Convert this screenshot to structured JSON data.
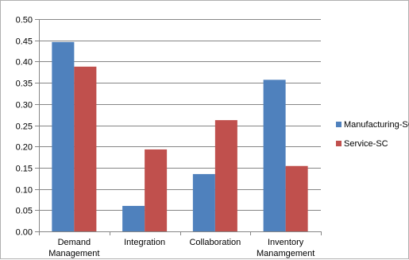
{
  "chart_data": {
    "type": "bar",
    "categories": [
      [
        "Demand",
        "Management"
      ],
      [
        "Integration"
      ],
      [
        "Collaboration"
      ],
      [
        "Inventory",
        "Manamgement"
      ]
    ],
    "series": [
      {
        "name": "Manufacturing-SC",
        "color": "#4f81bd",
        "values": [
          0.446,
          0.06,
          0.135,
          0.357
        ]
      },
      {
        "name": "Service-SC",
        "color": "#c0504d",
        "values": [
          0.388,
          0.193,
          0.262,
          0.154
        ]
      }
    ],
    "yticks": [
      "0.00",
      "0.05",
      "0.10",
      "0.15",
      "0.20",
      "0.25",
      "0.30",
      "0.35",
      "0.40",
      "0.45",
      "0.50"
    ],
    "ylim": [
      0,
      0.5
    ],
    "grid": true,
    "legend_position": "right",
    "title": "",
    "xlabel": "",
    "ylabel": ""
  }
}
